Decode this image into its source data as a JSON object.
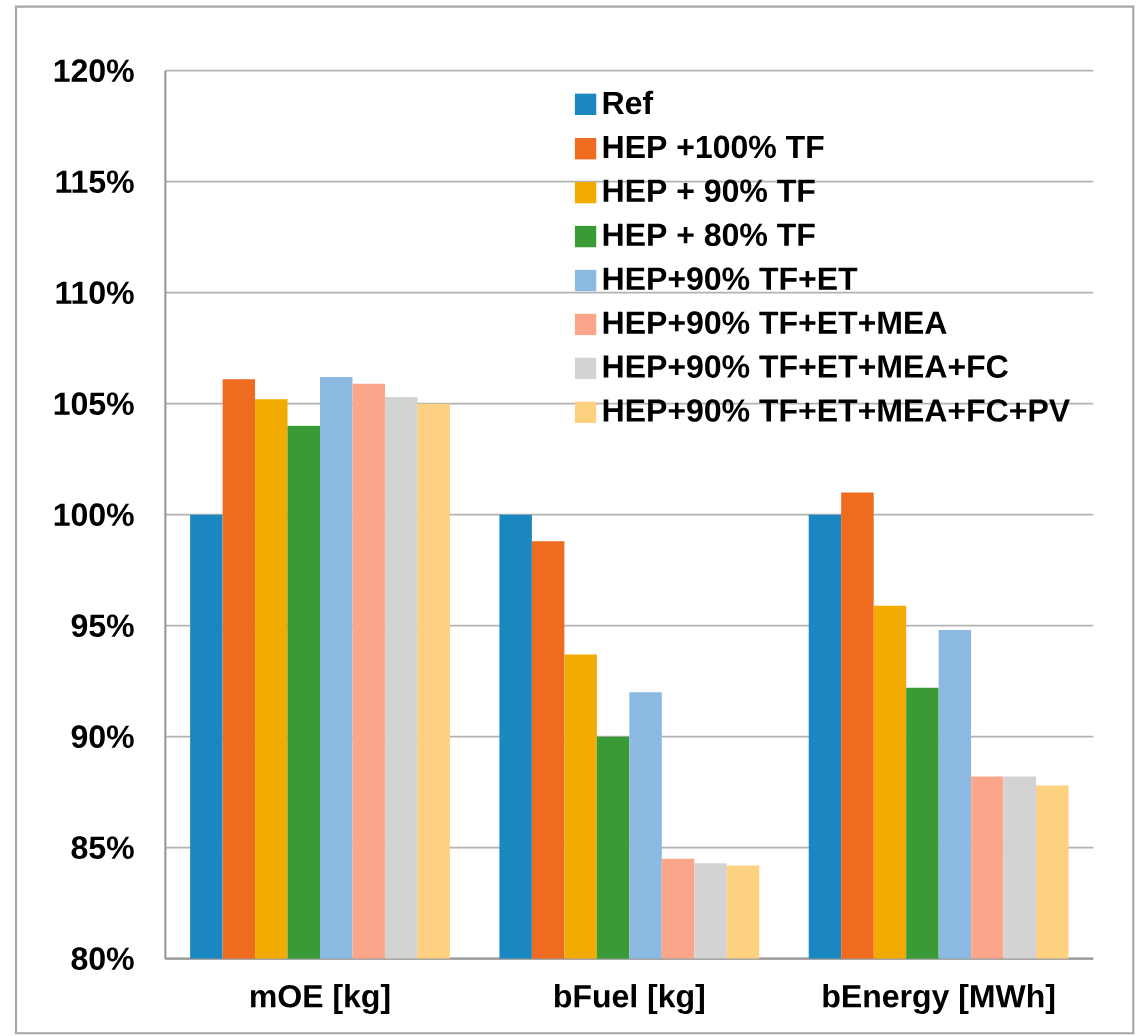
{
  "chart_data": {
    "type": "bar",
    "categories": [
      "mOE [kg]",
      "bFuel [kg]",
      "bEnergy [MWh]"
    ],
    "series": [
      {
        "name": "Ref",
        "color": "#1a87c0",
        "values": [
          100,
          100,
          100
        ]
      },
      {
        "name": "HEP +100% TF",
        "color": "#ee6b20",
        "values": [
          106.1,
          98.8,
          101.0
        ]
      },
      {
        "name": "HEP + 90% TF",
        "color": "#f2ab00",
        "values": [
          105.2,
          93.7,
          95.9
        ]
      },
      {
        "name": "HEP + 80% TF",
        "color": "#3a9a35",
        "values": [
          104.0,
          90.0,
          92.2
        ]
      },
      {
        "name": "HEP+90% TF+ET",
        "color": "#8cb9e2",
        "values": [
          106.2,
          92.0,
          94.8
        ]
      },
      {
        "name": "HEP+90% TF+ET+MEA",
        "color": "#fba68a",
        "values": [
          105.9,
          84.5,
          88.2
        ]
      },
      {
        "name": "HEP+90% TF+ET+MEA+FC",
        "color": "#d3d3d3",
        "values": [
          105.3,
          84.3,
          88.2
        ]
      },
      {
        "name": "HEP+90% TF+ET+MEA+FC+PV",
        "color": "#fdd17f",
        "values": [
          105.0,
          84.2,
          87.8
        ]
      }
    ],
    "ylim": [
      80,
      120
    ],
    "yticks": [
      {
        "value": 80,
        "label": "80%"
      },
      {
        "value": 85,
        "label": "85%"
      },
      {
        "value": 90,
        "label": "90%"
      },
      {
        "value": 95,
        "label": "95%"
      },
      {
        "value": 100,
        "label": "100%"
      },
      {
        "value": 105,
        "label": "105%"
      },
      {
        "value": 110,
        "label": "110%"
      },
      {
        "value": 115,
        "label": "115%"
      },
      {
        "value": 120,
        "label": "120%"
      }
    ],
    "grid": "y",
    "legend": "top right"
  }
}
